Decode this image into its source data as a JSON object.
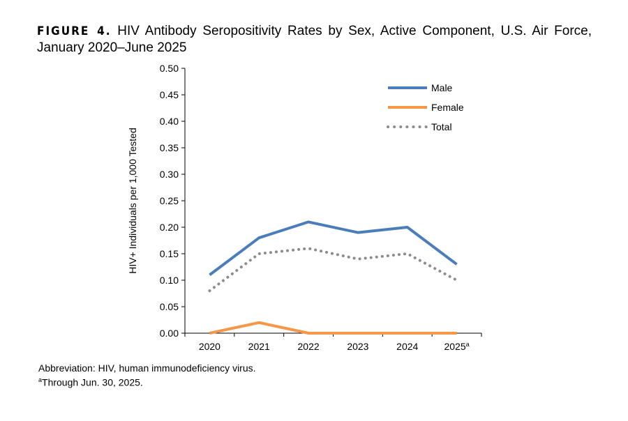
{
  "title": {
    "label": "FIGURE 4.",
    "text": "HIV Antibody Seropositivity Rates by Sex, Active Component, U.S. Air Force, January 2020–June 2025"
  },
  "chart_data": {
    "type": "line",
    "categories": [
      "2020",
      "2021",
      "2022",
      "2023",
      "2024",
      "2025"
    ],
    "category_superscripts": [
      "",
      "",
      "",
      "",
      "",
      "a"
    ],
    "ylabel": "HIV+ Individuals per 1,000 Tested",
    "ylim": [
      0,
      0.5
    ],
    "yticks": [
      "0.00",
      "0.05",
      "0.10",
      "0.15",
      "0.20",
      "0.25",
      "0.30",
      "0.35",
      "0.40",
      "0.45",
      "0.50"
    ],
    "grid": false,
    "legend": "top-right",
    "series": [
      {
        "name": "Male",
        "values": [
          0.11,
          0.18,
          0.21,
          0.19,
          0.2,
          0.13
        ],
        "color": "#4a7ebb",
        "style": "solid"
      },
      {
        "name": "Female",
        "values": [
          0.0,
          0.02,
          0.0,
          0.0,
          0.0,
          0.0
        ],
        "color": "#f79646",
        "style": "solid"
      },
      {
        "name": "Total",
        "values": [
          0.08,
          0.15,
          0.16,
          0.14,
          0.15,
          0.1
        ],
        "color": "#8c8c8c",
        "style": "dotted"
      }
    ]
  },
  "notes": {
    "abbreviation": "Abbreviation: HIV, human immunodeficiency virus.",
    "footnote_mark": "a",
    "footnote": "Through Jun. 30,  2025."
  }
}
